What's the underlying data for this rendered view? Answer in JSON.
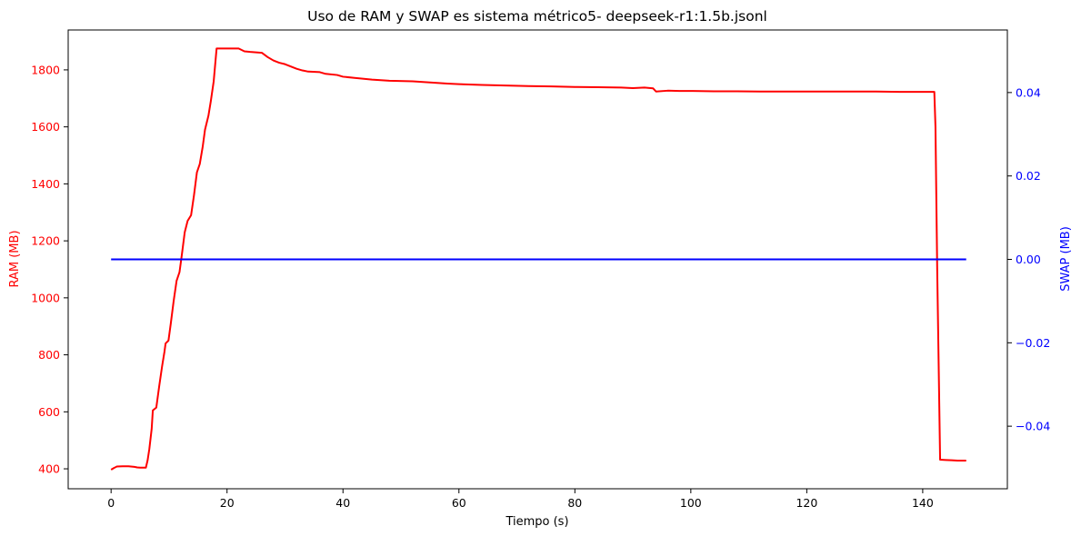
{
  "chart_data": {
    "type": "line",
    "title": "Uso de RAM y  SWAP es sistema métrico5- deepseek-r1:1.5b.jsonl",
    "xlabel": "Tiempo (s)",
    "ylabel_left": "RAM (MB)",
    "ylabel_right": "SWAP (MB)",
    "xlim": [
      -7.4,
      154.6
    ],
    "ylim_left": [
      330,
      1940
    ],
    "ylim_right": [
      -0.055,
      0.055
    ],
    "x_ticks": [
      0,
      20,
      40,
      60,
      80,
      100,
      120,
      140
    ],
    "y_left_ticks": [
      400,
      600,
      800,
      1000,
      1200,
      1400,
      1600,
      1800
    ],
    "y_right_ticks": [
      -0.04,
      -0.02,
      0.0,
      0.02,
      0.04
    ],
    "y_right_tick_labels": [
      "−0.04",
      "−0.02",
      "0.00",
      "0.02",
      "0.04"
    ],
    "grid": false,
    "legend": "none",
    "colors": {
      "ram": "#ff0000",
      "swap": "#0000ff",
      "axis": "#000000"
    },
    "series": [
      {
        "axis": "left",
        "color": "#ff0000",
        "points": [
          [
            0,
            397
          ],
          [
            0.5,
            403
          ],
          [
            1,
            408
          ],
          [
            2,
            409
          ],
          [
            3,
            409
          ],
          [
            4,
            407
          ],
          [
            4.5,
            405
          ],
          [
            5,
            404
          ],
          [
            6,
            404
          ],
          [
            6.3,
            430
          ],
          [
            6.6,
            470
          ],
          [
            7,
            540
          ],
          [
            7.2,
            605
          ],
          [
            7.8,
            615
          ],
          [
            8.3,
            690
          ],
          [
            8.8,
            760
          ],
          [
            9.2,
            810
          ],
          [
            9.4,
            840
          ],
          [
            9.9,
            850
          ],
          [
            10.3,
            910
          ],
          [
            10.8,
            990
          ],
          [
            11.3,
            1060
          ],
          [
            11.8,
            1090
          ],
          [
            12.2,
            1150
          ],
          [
            12.7,
            1230
          ],
          [
            13.2,
            1270
          ],
          [
            13.8,
            1290
          ],
          [
            14.3,
            1360
          ],
          [
            14.8,
            1440
          ],
          [
            15.3,
            1470
          ],
          [
            15.8,
            1530
          ],
          [
            16.2,
            1590
          ],
          [
            16.8,
            1640
          ],
          [
            17.2,
            1690
          ],
          [
            17.7,
            1760
          ],
          [
            18.2,
            1875
          ],
          [
            20,
            1875
          ],
          [
            22,
            1875
          ],
          [
            23,
            1865
          ],
          [
            24,
            1863
          ],
          [
            26,
            1860
          ],
          [
            27,
            1845
          ],
          [
            28,
            1833
          ],
          [
            29,
            1825
          ],
          [
            30,
            1820
          ],
          [
            31,
            1812
          ],
          [
            32,
            1804
          ],
          [
            33,
            1798
          ],
          [
            34,
            1794
          ],
          [
            36,
            1792
          ],
          [
            37,
            1786
          ],
          [
            39,
            1782
          ],
          [
            40,
            1776
          ],
          [
            42,
            1772
          ],
          [
            45,
            1766
          ],
          [
            48,
            1762
          ],
          [
            52,
            1760
          ],
          [
            55,
            1756
          ],
          [
            58,
            1752
          ],
          [
            60,
            1750
          ],
          [
            64,
            1747
          ],
          [
            68,
            1745
          ],
          [
            72,
            1743
          ],
          [
            76,
            1742
          ],
          [
            80,
            1740
          ],
          [
            84,
            1739
          ],
          [
            88,
            1738
          ],
          [
            90,
            1736
          ],
          [
            92,
            1738
          ],
          [
            93.5,
            1735
          ],
          [
            94,
            1724
          ],
          [
            96,
            1727
          ],
          [
            98,
            1726
          ],
          [
            100,
            1726
          ],
          [
            104,
            1725
          ],
          [
            108,
            1725
          ],
          [
            112,
            1724
          ],
          [
            116,
            1724
          ],
          [
            120,
            1724
          ],
          [
            124,
            1724
          ],
          [
            128,
            1724
          ],
          [
            132,
            1724
          ],
          [
            136,
            1723
          ],
          [
            140,
            1723
          ],
          [
            142,
            1723
          ],
          [
            142.2,
            1600
          ],
          [
            142.5,
            1100
          ],
          [
            142.8,
            700
          ],
          [
            143,
            432
          ],
          [
            144,
            431
          ],
          [
            145,
            430
          ],
          [
            146,
            429
          ],
          [
            147.5,
            429
          ]
        ]
      },
      {
        "axis": "right",
        "color": "#0000ff",
        "points": [
          [
            0,
            0.0
          ],
          [
            147.5,
            0.0
          ]
        ]
      }
    ]
  }
}
